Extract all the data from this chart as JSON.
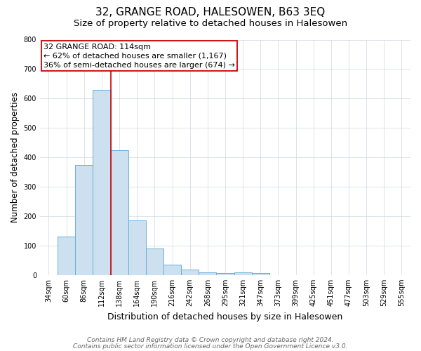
{
  "title1": "32, GRANGE ROAD, HALESOWEN, B63 3EQ",
  "title2": "Size of property relative to detached houses in Halesowen",
  "xlabel": "Distribution of detached houses by size in Halesowen",
  "ylabel": "Number of detached properties",
  "categories": [
    "34sqm",
    "60sqm",
    "86sqm",
    "112sqm",
    "138sqm",
    "164sqm",
    "190sqm",
    "216sqm",
    "242sqm",
    "268sqm",
    "295sqm",
    "321sqm",
    "347sqm",
    "373sqm",
    "399sqm",
    "425sqm",
    "451sqm",
    "477sqm",
    "503sqm",
    "529sqm",
    "555sqm"
  ],
  "values": [
    0,
    130,
    375,
    630,
    425,
    185,
    90,
    35,
    18,
    10,
    7,
    8,
    7,
    0,
    0,
    0,
    0,
    0,
    0,
    0,
    0
  ],
  "bar_color": "#cce0f0",
  "bar_edge_color": "#6aaed6",
  "bar_edge_width": 0.7,
  "grid_color": "#d0d8e0",
  "ylim": [
    0,
    800
  ],
  "yticks": [
    0,
    100,
    200,
    300,
    400,
    500,
    600,
    700,
    800
  ],
  "red_line_x": 3.5,
  "red_line_color": "#cc0000",
  "annotation_line1": "32 GRANGE ROAD: 114sqm",
  "annotation_line2": "← 62% of detached houses are smaller (1,167)",
  "annotation_line3": "36% of semi-detached houses are larger (674) →",
  "annotation_box_color": "#cc0000",
  "footer1": "Contains HM Land Registry data © Crown copyright and database right 2024.",
  "footer2": "Contains public sector information licensed under the Open Government Licence v3.0.",
  "title1_fontsize": 11,
  "title2_fontsize": 9.5,
  "xlabel_fontsize": 9,
  "ylabel_fontsize": 8.5,
  "tick_fontsize": 7,
  "annotation_fontsize": 8,
  "footer_fontsize": 6.5
}
